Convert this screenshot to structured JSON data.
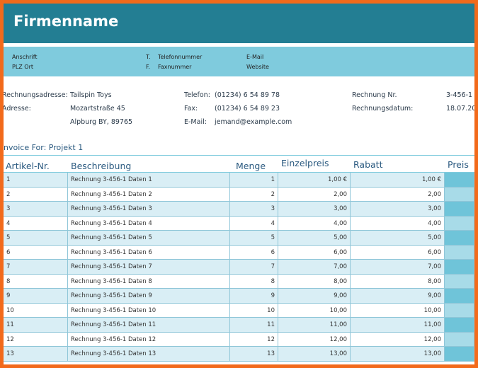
{
  "header": {
    "title": "Firmenname"
  },
  "contact_band": {
    "address_label": "Anschrift",
    "city_label": "PLZ Ort",
    "phone_prefix": "T.",
    "phone_label": "Telefonnummer",
    "fax_prefix": "F.",
    "fax_label": "Faxnummer",
    "email_label": "E-Mail",
    "website_label": "Website"
  },
  "billing": {
    "address_label": "Rechnungsadresse:",
    "company": "Tailspin Toys",
    "street_label": "Adresse:",
    "street": "Mozartstraße 45",
    "city": "Alpburg BY, 89765"
  },
  "contact": {
    "phone_label": "Telefon:",
    "phone": "(01234) 6 54 89 78",
    "fax_label": "Fax:",
    "fax": "(01234) 6 54 89 23",
    "email_label": "E-Mail:",
    "email": "jemand@example.com"
  },
  "invoice": {
    "number_label": "Rechnung Nr.",
    "number": "3-456-1",
    "date_label": "Rechnungsdatum:",
    "date": "18.07.20",
    "for": "nvoice For: Projekt 1"
  },
  "table": {
    "columns": [
      "Artikel-Nr.",
      "Beschreibung",
      "Menge",
      "Einzelpreis",
      "Rabatt",
      "Preis"
    ],
    "rows": [
      [
        "1",
        "Rechnung 3-456-1 Daten 1",
        "1",
        "1,00 €",
        "1,00 €"
      ],
      [
        "2",
        "Rechnung 3-456-1 Daten 2",
        "2",
        "2,00",
        "2,00"
      ],
      [
        "3",
        "Rechnung 3-456-1 Daten 3",
        "3",
        "3,00",
        "3,00"
      ],
      [
        "4",
        "Rechnung 3-456-1 Daten 4",
        "4",
        "4,00",
        "4,00"
      ],
      [
        "5",
        "Rechnung 3-456-1 Daten 5",
        "5",
        "5,00",
        "5,00"
      ],
      [
        "6",
        "Rechnung 3-456-1 Daten 6",
        "6",
        "6,00",
        "6,00"
      ],
      [
        "7",
        "Rechnung 3-456-1 Daten 7",
        "7",
        "7,00",
        "7,00"
      ],
      [
        "8",
        "Rechnung 3-456-1 Daten 8",
        "8",
        "8,00",
        "8,00"
      ],
      [
        "9",
        "Rechnung 3-456-1 Daten 9",
        "9",
        "9,00",
        "9,00"
      ],
      [
        "10",
        "Rechnung 3-456-1 Daten 10",
        "10",
        "10,00",
        "10,00"
      ],
      [
        "11",
        "Rechnung 3-456-1 Daten 11",
        "11",
        "11,00",
        "11,00"
      ],
      [
        "12",
        "Rechnung 3-456-1 Daten 12",
        "12",
        "12,00",
        "12,00"
      ],
      [
        "13",
        "Rechnung 3-456-1 Daten 13",
        "13",
        "13,00",
        "13,00"
      ]
    ]
  }
}
